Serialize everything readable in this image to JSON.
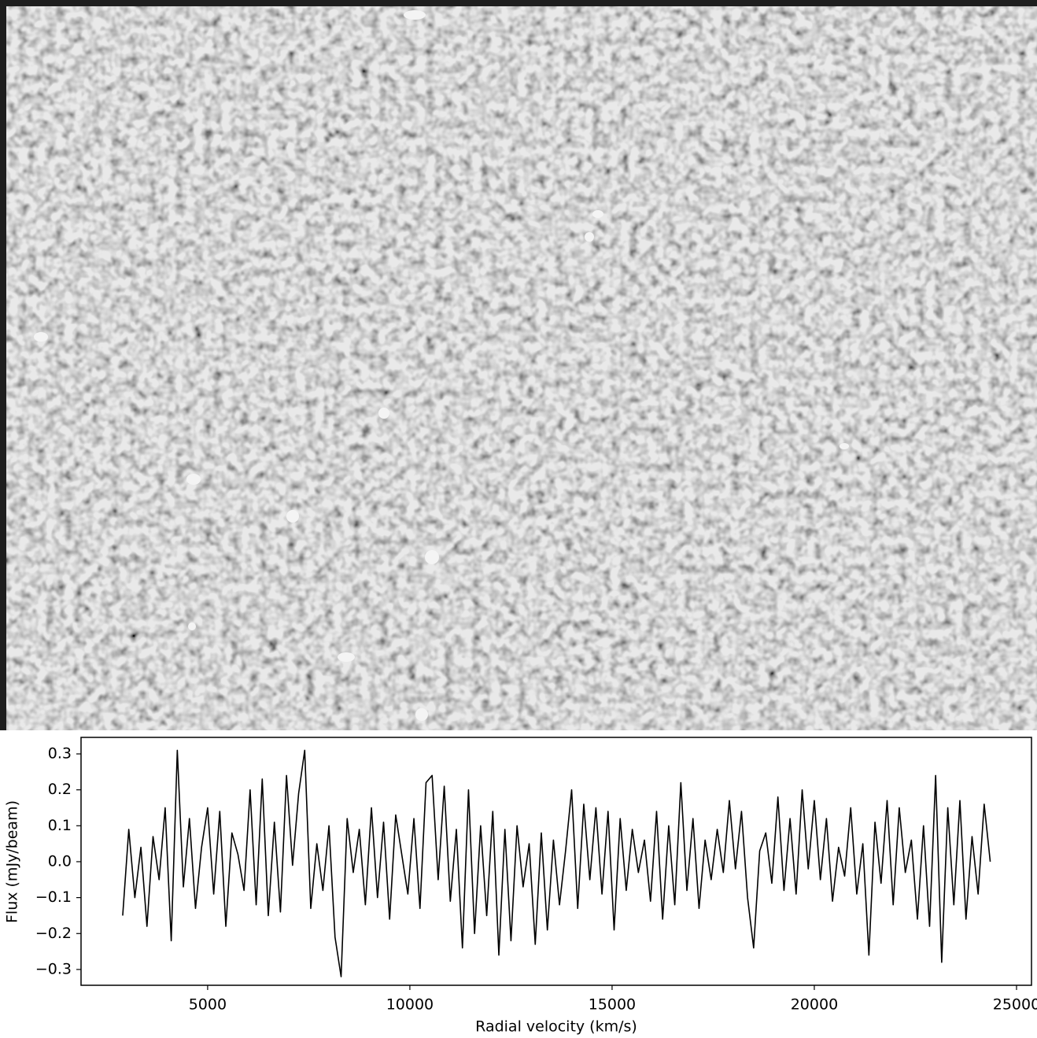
{
  "chart_data": {
    "type": "line",
    "x_label": "Radial velocity (km/s)",
    "y_label": "Flux (mJy/beam)",
    "color": "#000000",
    "x": [
      2900,
      3050,
      3200,
      3350,
      3500,
      3650,
      3800,
      3950,
      4100,
      4250,
      4400,
      4550,
      4700,
      4850,
      5000,
      5150,
      5300,
      5450,
      5600,
      5750,
      5900,
      6050,
      6200,
      6350,
      6500,
      6650,
      6800,
      6950,
      7100,
      7250,
      7400,
      7550,
      7700,
      7850,
      8000,
      8150,
      8300,
      8450,
      8600,
      8750,
      8900,
      9050,
      9200,
      9350,
      9500,
      9650,
      9800,
      9950,
      10100,
      10250,
      10400,
      10550,
      10700,
      10850,
      11000,
      11150,
      11300,
      11450,
      11600,
      11750,
      11900,
      12050,
      12200,
      12350,
      12500,
      12650,
      12800,
      12950,
      13100,
      13250,
      13400,
      13550,
      13700,
      13850,
      14000,
      14150,
      14300,
      14450,
      14600,
      14750,
      14900,
      15050,
      15200,
      15350,
      15500,
      15650,
      15800,
      15950,
      16100,
      16250,
      16400,
      16550,
      16700,
      16850,
      17000,
      17150,
      17300,
      17450,
      17600,
      17750,
      17900,
      18050,
      18200,
      18350,
      18500,
      18650,
      18800,
      18950,
      19100,
      19250,
      19400,
      19550,
      19700,
      19850,
      20000,
      20150,
      20300,
      20450,
      20600,
      20750,
      20900,
      21050,
      21200,
      21350,
      21500,
      21650,
      21800,
      21950,
      22100,
      22250,
      22400,
      22550,
      22700,
      22850,
      23000,
      23150,
      23300,
      23450,
      23600,
      23750,
      23900,
      24050,
      24200,
      24350
    ],
    "values": [
      -0.15,
      0.09,
      -0.1,
      0.04,
      -0.18,
      0.07,
      -0.05,
      0.15,
      -0.22,
      0.31,
      -0.07,
      0.12,
      -0.13,
      0.04,
      0.15,
      -0.09,
      0.14,
      -0.18,
      0.08,
      0.02,
      -0.08,
      0.2,
      -0.12,
      0.23,
      -0.15,
      0.11,
      -0.14,
      0.24,
      -0.01,
      0.19,
      0.31,
      -0.13,
      0.05,
      -0.08,
      0.1,
      -0.21,
      -0.32,
      0.12,
      -0.03,
      0.09,
      -0.12,
      0.15,
      -0.1,
      0.11,
      -0.16,
      0.13,
      0.02,
      -0.09,
      0.12,
      -0.13,
      0.22,
      0.24,
      -0.05,
      0.21,
      -0.11,
      0.09,
      -0.24,
      0.2,
      -0.2,
      0.1,
      -0.15,
      0.14,
      -0.26,
      0.09,
      -0.22,
      0.1,
      -0.07,
      0.05,
      -0.23,
      0.08,
      -0.19,
      0.06,
      -0.12,
      0.03,
      0.2,
      -0.13,
      0.16,
      -0.05,
      0.15,
      -0.09,
      0.14,
      -0.19,
      0.12,
      -0.08,
      0.09,
      -0.03,
      0.06,
      -0.11,
      0.14,
      -0.16,
      0.1,
      -0.12,
      0.22,
      -0.08,
      0.12,
      -0.13,
      0.06,
      -0.05,
      0.09,
      -0.03,
      0.17,
      -0.02,
      0.14,
      -0.1,
      -0.24,
      0.03,
      0.08,
      -0.06,
      0.18,
      -0.08,
      0.12,
      -0.09,
      0.2,
      -0.02,
      0.17,
      -0.05,
      0.12,
      -0.11,
      0.04,
      -0.04,
      0.15,
      -0.09,
      0.05,
      -0.26,
      0.11,
      -0.06,
      0.17,
      -0.12,
      0.15,
      -0.03,
      0.06,
      -0.16,
      0.1,
      -0.18,
      0.24,
      -0.28,
      0.15,
      -0.12,
      0.17,
      -0.16,
      0.07,
      -0.09,
      0.16,
      0.0
    ],
    "xlim": [
      1870,
      25370
    ],
    "xticks": [
      5000,
      10000,
      15000,
      20000,
      25000
    ],
    "ylim": [
      -0.344,
      0.346
    ],
    "yticks": [
      {
        "value": -0.3,
        "label": "−0.3"
      },
      {
        "value": -0.2,
        "label": "−0.2"
      },
      {
        "value": -0.1,
        "label": "−0.1"
      },
      {
        "value": 0,
        "label": "0.0"
      },
      0.1,
      0.2,
      0.3
    ]
  }
}
